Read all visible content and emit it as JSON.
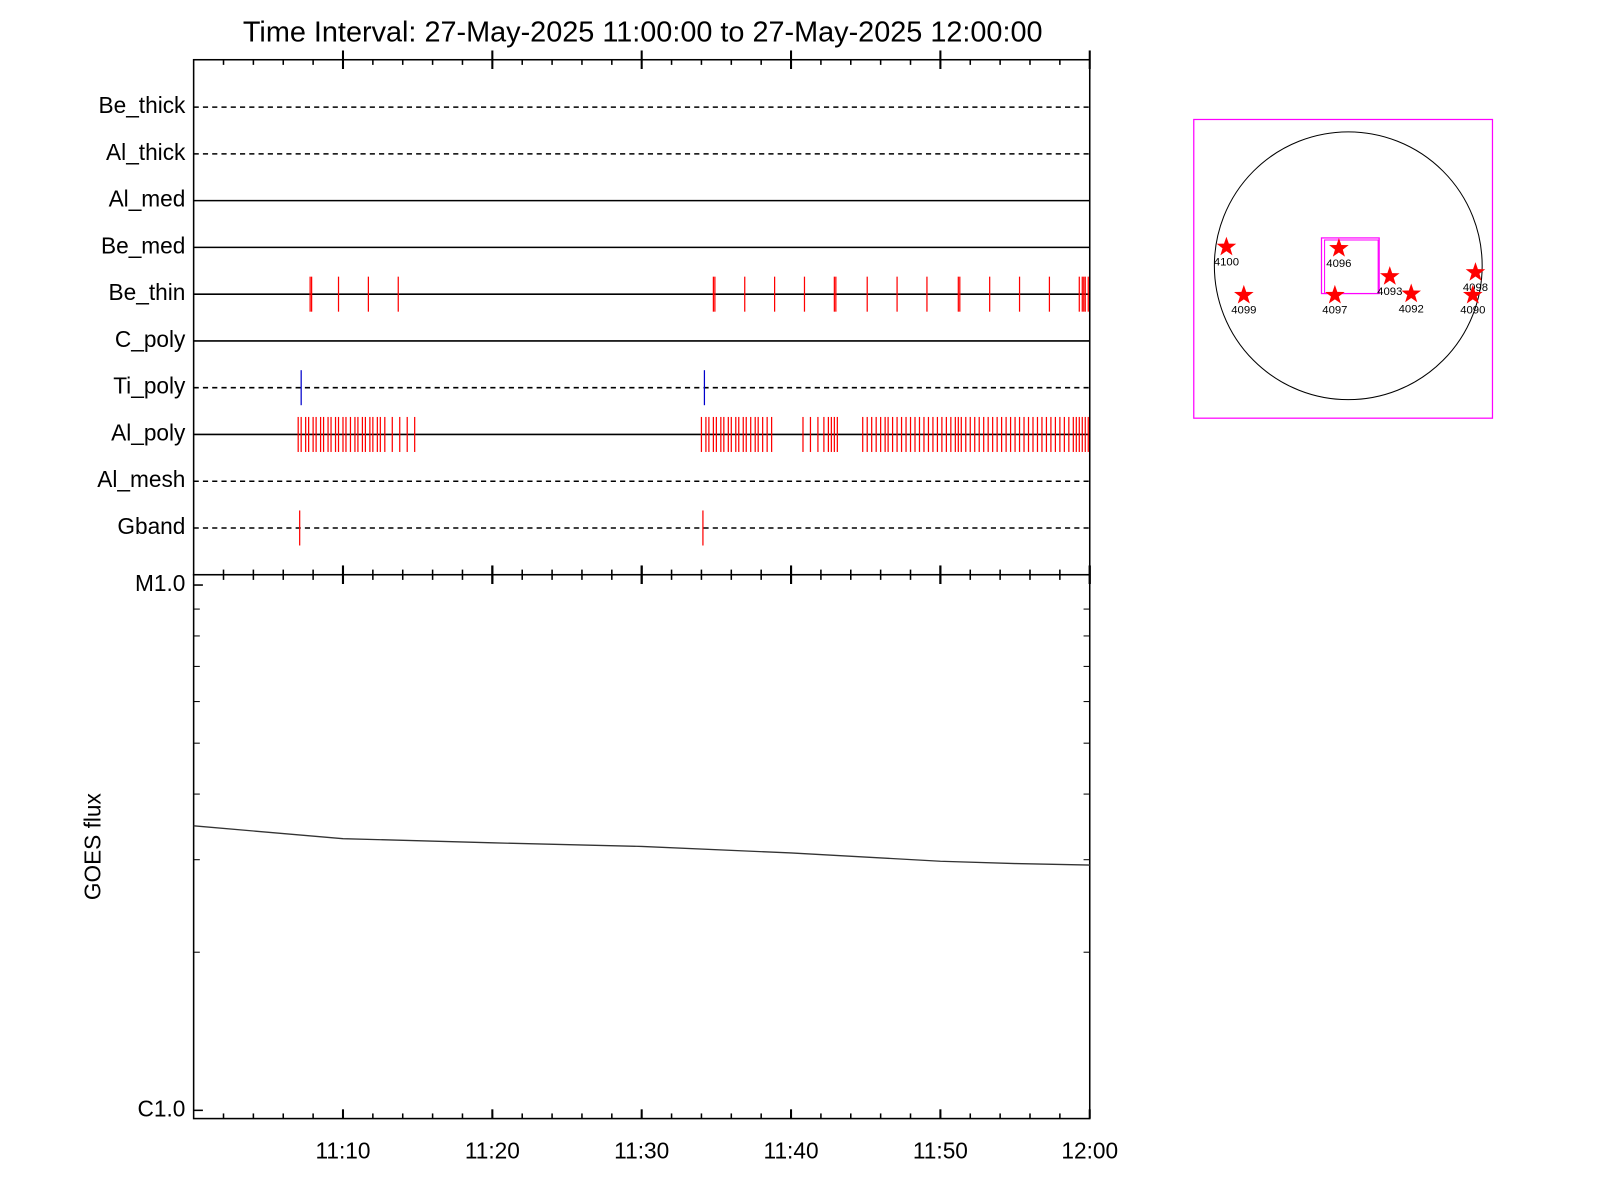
{
  "chart_data": [
    {
      "type": "timeline",
      "title": "Time Interval: 27-May-2025 11:00:00 to 27-May-2025 12:00:00",
      "xlim": [
        0,
        60
      ],
      "xticks": [
        10,
        20,
        30,
        40,
        50,
        60
      ],
      "xminor_step": 2,
      "rows": [
        {
          "label": "Be_thick",
          "line": "dashed",
          "color": "#ff0000",
          "events": []
        },
        {
          "label": "Al_thick",
          "line": "dashed",
          "color": "#ff0000",
          "events": []
        },
        {
          "label": "Al_med",
          "line": "solid",
          "color": "#ff0000",
          "events": []
        },
        {
          "label": "Be_med",
          "line": "solid",
          "color": "#ff0000",
          "events": []
        },
        {
          "label": "Be_thin",
          "line": "solid",
          "color": "#ff0000",
          "events": [
            7.8,
            7.9,
            9.7,
            11.7,
            13.7,
            34.8,
            34.9,
            36.9,
            38.9,
            40.9,
            42.9,
            43.0,
            45.1,
            47.1,
            49.1,
            51.2,
            51.3,
            53.3,
            55.3,
            57.3,
            59.3,
            59.5,
            59.6,
            59.7,
            59.9
          ]
        },
        {
          "label": "C_poly",
          "line": "solid",
          "color": "#ff0000",
          "events": []
        },
        {
          "label": "Ti_poly",
          "line": "dashed",
          "color": "#0000cc",
          "events": [
            7.2,
            34.2
          ]
        },
        {
          "label": "Al_poly",
          "line": "solid",
          "color": "#ff0000",
          "events": [
            7.0,
            7.2,
            7.5,
            7.7,
            8.0,
            8.2,
            8.5,
            8.7,
            9.0,
            9.2,
            9.5,
            9.7,
            10.0,
            10.2,
            10.5,
            10.8,
            11.0,
            11.3,
            11.5,
            11.8,
            12.0,
            12.3,
            12.5,
            12.8,
            13.3,
            13.8,
            14.3,
            14.8,
            34.0,
            34.3,
            34.5,
            34.8,
            35.0,
            35.3,
            35.5,
            35.8,
            36.0,
            36.3,
            36.5,
            36.8,
            37.0,
            37.3,
            37.6,
            37.8,
            38.1,
            38.4,
            38.7,
            40.8,
            41.3,
            41.8,
            42.2,
            42.5,
            42.7,
            42.9,
            43.1,
            44.8,
            45.1,
            45.4,
            45.7,
            46.0,
            46.3,
            46.5,
            46.8,
            47.1,
            47.4,
            47.7,
            48.0,
            48.3,
            48.6,
            48.9,
            49.2,
            49.5,
            49.8,
            50.1,
            50.4,
            50.7,
            51.0,
            51.2,
            51.4,
            51.7,
            52.0,
            52.3,
            52.6,
            52.9,
            53.2,
            53.5,
            53.8,
            54.1,
            54.4,
            54.7,
            55.0,
            55.3,
            55.6,
            55.9,
            56.2,
            56.5,
            56.8,
            57.1,
            57.4,
            57.7,
            58.0,
            58.3,
            58.6,
            58.9,
            59.1,
            59.3,
            59.5,
            59.7,
            59.9
          ]
        },
        {
          "label": "Al_mesh",
          "line": "dashed",
          "color": "#ff0000",
          "events": []
        },
        {
          "label": "Gband",
          "line": "dashed",
          "color": "#ff0000",
          "events": [
            7.1,
            34.1
          ]
        }
      ]
    },
    {
      "type": "line",
      "ylabel": "GOES flux",
      "color": "#333333",
      "log_y": true,
      "x": [
        0,
        10,
        20,
        30,
        40,
        50,
        55,
        60
      ],
      "values": [
        3.48e-06,
        3.29e-06,
        3.23e-06,
        3.18e-06,
        3.09e-06,
        2.98e-06,
        2.95e-06,
        2.93e-06
      ],
      "xlim": [
        0,
        60
      ],
      "xminor_step": 2,
      "xticks": [
        {
          "value": 10,
          "label": "11:10"
        },
        {
          "value": 20,
          "label": "11:20"
        },
        {
          "value": 30,
          "label": "11:30"
        },
        {
          "value": 40,
          "label": "11:40"
        },
        {
          "value": 50,
          "label": "11:50"
        },
        {
          "value": 60,
          "label": "12:00"
        }
      ],
      "ylim": [
        1e-06,
        1e-05
      ],
      "yticks": [
        {
          "value": 1e-05,
          "label": "M1.0"
        },
        {
          "value": 1e-06,
          "label": "C1.0"
        }
      ],
      "yminorticks": [
        2e-06,
        3e-06,
        4e-06,
        5e-06,
        6e-06,
        7e-06,
        8e-06,
        9e-06
      ]
    },
    {
      "type": "map",
      "color": "#ff0000",
      "regions": [
        {
          "label": "4100",
          "x": -0.91,
          "y": 0.14
        },
        {
          "label": "4099",
          "x": -0.78,
          "y": -0.22
        },
        {
          "label": "4096",
          "x": -0.07,
          "y": 0.13
        },
        {
          "label": "4097",
          "x": -0.1,
          "y": -0.22
        },
        {
          "label": "4093",
          "x": 0.31,
          "y": -0.08
        },
        {
          "label": "4092",
          "x": 0.47,
          "y": -0.21
        },
        {
          "label": "4098",
          "x": 0.95,
          "y": -0.05
        },
        {
          "label": "4090",
          "x": 0.93,
          "y": -0.22
        }
      ]
    }
  ]
}
